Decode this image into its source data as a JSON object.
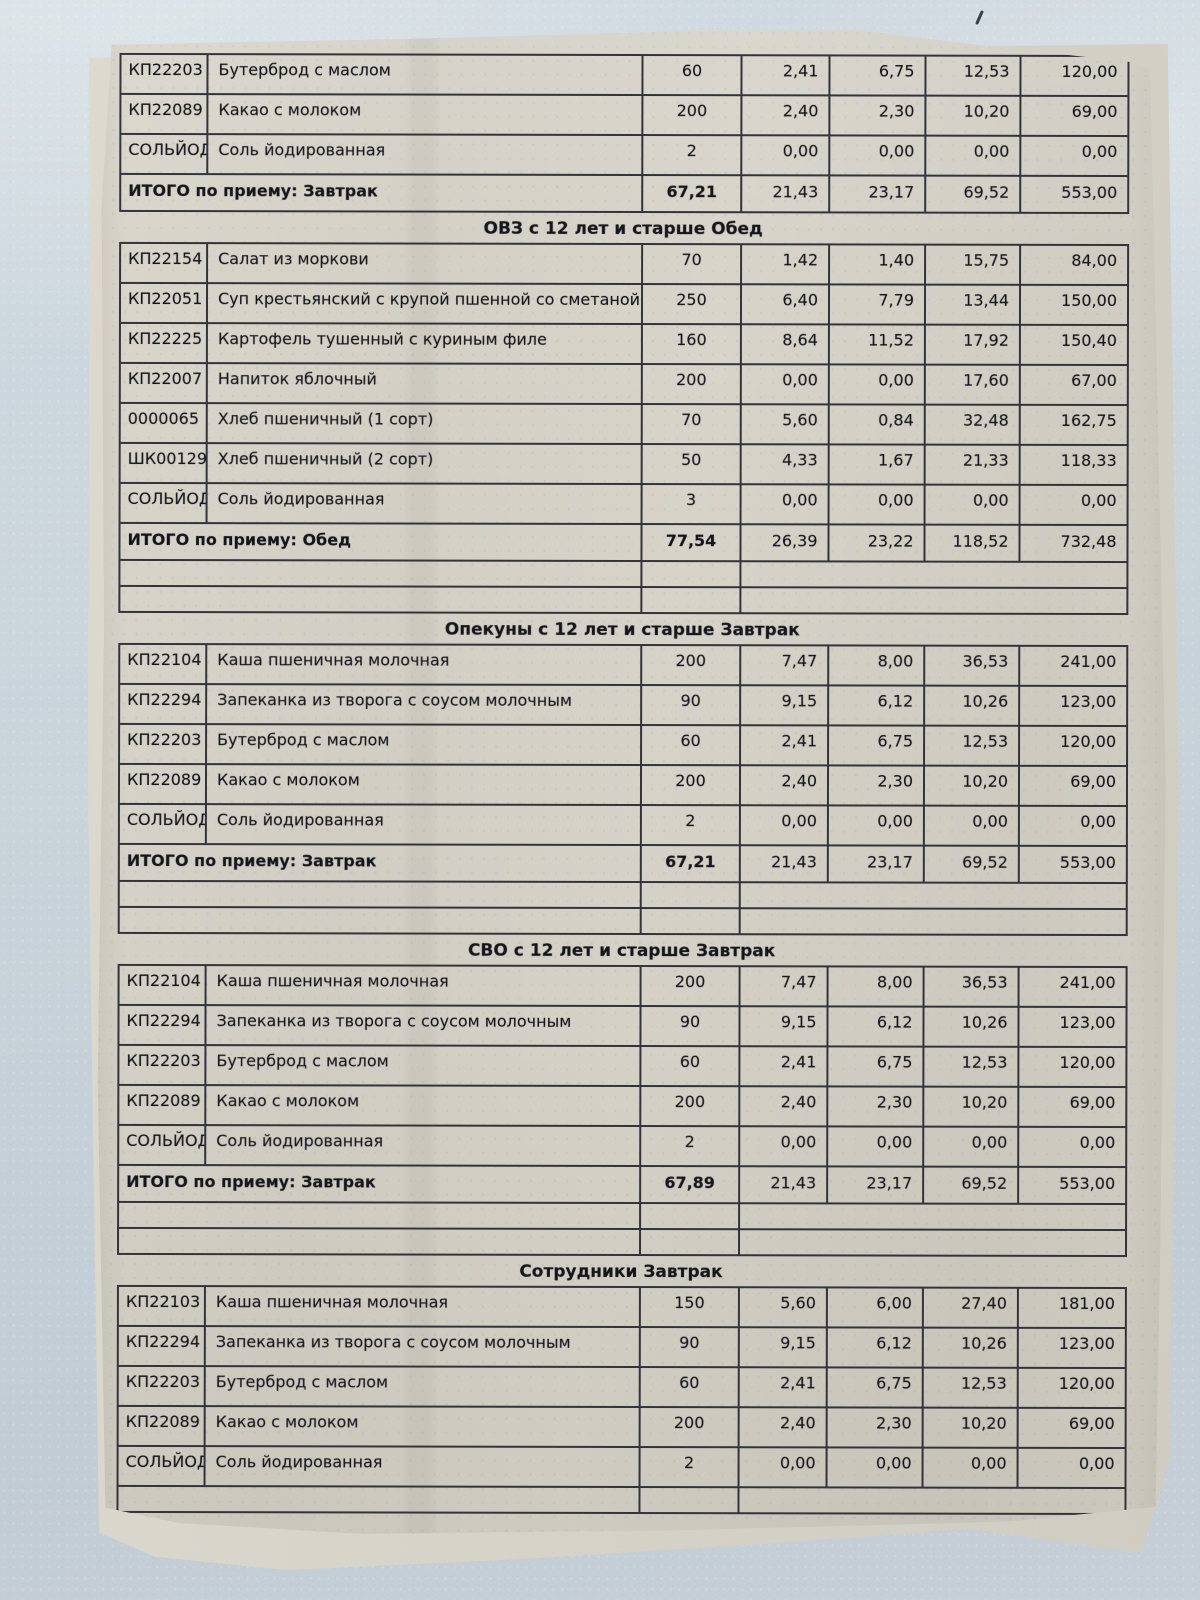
{
  "photo": {
    "background_color": "#cad4db",
    "paper_color": "#d4d1c7",
    "line_color": "#33333c",
    "text_color": "#15151b"
  },
  "sections": [
    {
      "header": "",
      "rows": [
        {
          "code": "КП22203",
          "name": "Бутерброд с маслом",
          "values": [
            "60",
            "2,41",
            "6,75",
            "12,53",
            "120,00"
          ]
        },
        {
          "code": "КП22089",
          "name": "Какао с молоком",
          "values": [
            "200",
            "2,40",
            "2,30",
            "10,20",
            "69,00"
          ]
        },
        {
          "code": "СОЛЬЙОД",
          "name": "Соль йодированная",
          "values": [
            "2",
            "0,00",
            "0,00",
            "0,00",
            "0,00"
          ]
        }
      ],
      "total": {
        "label": "ИТОГО по приему: Завтрак",
        "values": [
          "67,21",
          "21,43",
          "23,17",
          "69,52",
          "553,00"
        ]
      },
      "blank_rows": 0
    },
    {
      "header": "ОВЗ с 12 лет и старше Обед",
      "rows": [
        {
          "code": "КП22154",
          "name": "Салат из моркови",
          "values": [
            "70",
            "1,42",
            "1,40",
            "15,75",
            "84,00"
          ]
        },
        {
          "code": "КП22051",
          "name": "Суп крестьянский с крупой пшенной со сметаной",
          "values": [
            "250",
            "6,40",
            "7,79",
            "13,44",
            "150,00"
          ]
        },
        {
          "code": "КП22225",
          "name": "Картофель тушенный с куриным филе",
          "values": [
            "160",
            "8,64",
            "11,52",
            "17,92",
            "150,40"
          ]
        },
        {
          "code": "КП22007",
          "name": "Напиток яблочный",
          "values": [
            "200",
            "0,00",
            "0,00",
            "17,60",
            "67,00"
          ]
        },
        {
          "code": "0000065",
          "name": "Хлеб пшеничный (1 сорт)",
          "values": [
            "70",
            "5,60",
            "0,84",
            "32,48",
            "162,75"
          ]
        },
        {
          "code": "ШК00129",
          "name": "Хлеб пшеничный (2 сорт)",
          "values": [
            "50",
            "4,33",
            "1,67",
            "21,33",
            "118,33"
          ]
        },
        {
          "code": "СОЛЬЙОД",
          "name": "Соль йодированная",
          "values": [
            "3",
            "0,00",
            "0,00",
            "0,00",
            "0,00"
          ]
        }
      ],
      "total": {
        "label": "ИТОГО по приему: Обед",
        "values": [
          "77,54",
          "26,39",
          "23,22",
          "118,52",
          "732,48"
        ]
      },
      "blank_rows": 2
    },
    {
      "header": "Опекуны с 12 лет и старше Завтрак",
      "rows": [
        {
          "code": "КП22104",
          "name": "Каша пшеничная молочная",
          "values": [
            "200",
            "7,47",
            "8,00",
            "36,53",
            "241,00"
          ]
        },
        {
          "code": "КП22294",
          "name": "Запеканка из творога с соусом молочным",
          "values": [
            "90",
            "9,15",
            "6,12",
            "10,26",
            "123,00"
          ]
        },
        {
          "code": "КП22203",
          "name": "Бутерброд с маслом",
          "values": [
            "60",
            "2,41",
            "6,75",
            "12,53",
            "120,00"
          ]
        },
        {
          "code": "КП22089",
          "name": "Какао с молоком",
          "values": [
            "200",
            "2,40",
            "2,30",
            "10,20",
            "69,00"
          ]
        },
        {
          "code": "СОЛЬЙОД",
          "name": "Соль йодированная",
          "values": [
            "2",
            "0,00",
            "0,00",
            "0,00",
            "0,00"
          ]
        }
      ],
      "total": {
        "label": "ИТОГО по приему: Завтрак",
        "values": [
          "67,21",
          "21,43",
          "23,17",
          "69,52",
          "553,00"
        ]
      },
      "blank_rows": 2
    },
    {
      "header": "СВО с 12 лет и старше Завтрак",
      "rows": [
        {
          "code": "КП22104",
          "name": "Каша пшеничная молочная",
          "values": [
            "200",
            "7,47",
            "8,00",
            "36,53",
            "241,00"
          ]
        },
        {
          "code": "КП22294",
          "name": "Запеканка из творога с соусом молочным",
          "values": [
            "90",
            "9,15",
            "6,12",
            "10,26",
            "123,00"
          ]
        },
        {
          "code": "КП22203",
          "name": "Бутерброд с маслом",
          "values": [
            "60",
            "2,41",
            "6,75",
            "12,53",
            "120,00"
          ]
        },
        {
          "code": "КП22089",
          "name": "Какао с молоком",
          "values": [
            "200",
            "2,40",
            "2,30",
            "10,20",
            "69,00"
          ]
        },
        {
          "code": "СОЛЬЙОД",
          "name": "Соль йодированная",
          "values": [
            "2",
            "0,00",
            "0,00",
            "0,00",
            "0,00"
          ]
        }
      ],
      "total": {
        "label": "ИТОГО по приему: Завтрак",
        "values": [
          "67,89",
          "21,43",
          "23,17",
          "69,52",
          "553,00"
        ]
      },
      "blank_rows": 2
    },
    {
      "header": "Сотрудники Завтрак",
      "rows": [
        {
          "code": "КП22103",
          "name": "Каша пшеничная молочная",
          "values": [
            "150",
            "5,60",
            "6,00",
            "27,40",
            "181,00"
          ]
        },
        {
          "code": "КП22294",
          "name": "Запеканка из творога с соусом молочным",
          "values": [
            "90",
            "9,15",
            "6,12",
            "10,26",
            "123,00"
          ]
        },
        {
          "code": "КП22203",
          "name": "Бутерброд с маслом",
          "values": [
            "60",
            "2,41",
            "6,75",
            "12,53",
            "120,00"
          ]
        },
        {
          "code": "КП22089",
          "name": "Какао с молоком",
          "values": [
            "200",
            "2,40",
            "2,30",
            "10,20",
            "69,00"
          ]
        },
        {
          "code": "СОЛЬЙОД",
          "name": "Соль йодированная",
          "values": [
            "2",
            "0,00",
            "0,00",
            "0,00",
            "0,00"
          ]
        }
      ],
      "total": null,
      "blank_rows": 1
    }
  ]
}
